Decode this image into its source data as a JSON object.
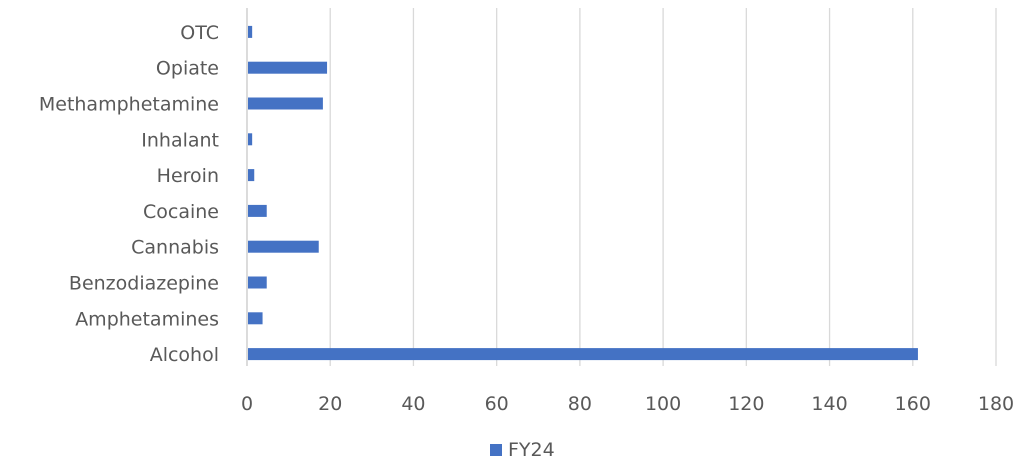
{
  "chart_data": {
    "type": "bar",
    "orientation": "horizontal",
    "categories": [
      "OTC",
      "Opiate",
      "Methamphetamine",
      "Inhalant",
      "Heroin",
      "Cocaine",
      "Cannabis",
      "Benzodiazepine",
      "Amphetamines",
      "Alcohol"
    ],
    "series": [
      {
        "name": "FY24",
        "values": [
          1,
          19,
          18,
          1,
          1.5,
          4.5,
          17,
          4.5,
          3.5,
          161
        ],
        "color": "#4472c4"
      }
    ],
    "xlim": [
      0,
      180
    ],
    "xticks": [
      0,
      20,
      40,
      60,
      80,
      100,
      120,
      140,
      160,
      180
    ],
    "grid": "vertical",
    "legend_position": "bottom"
  }
}
